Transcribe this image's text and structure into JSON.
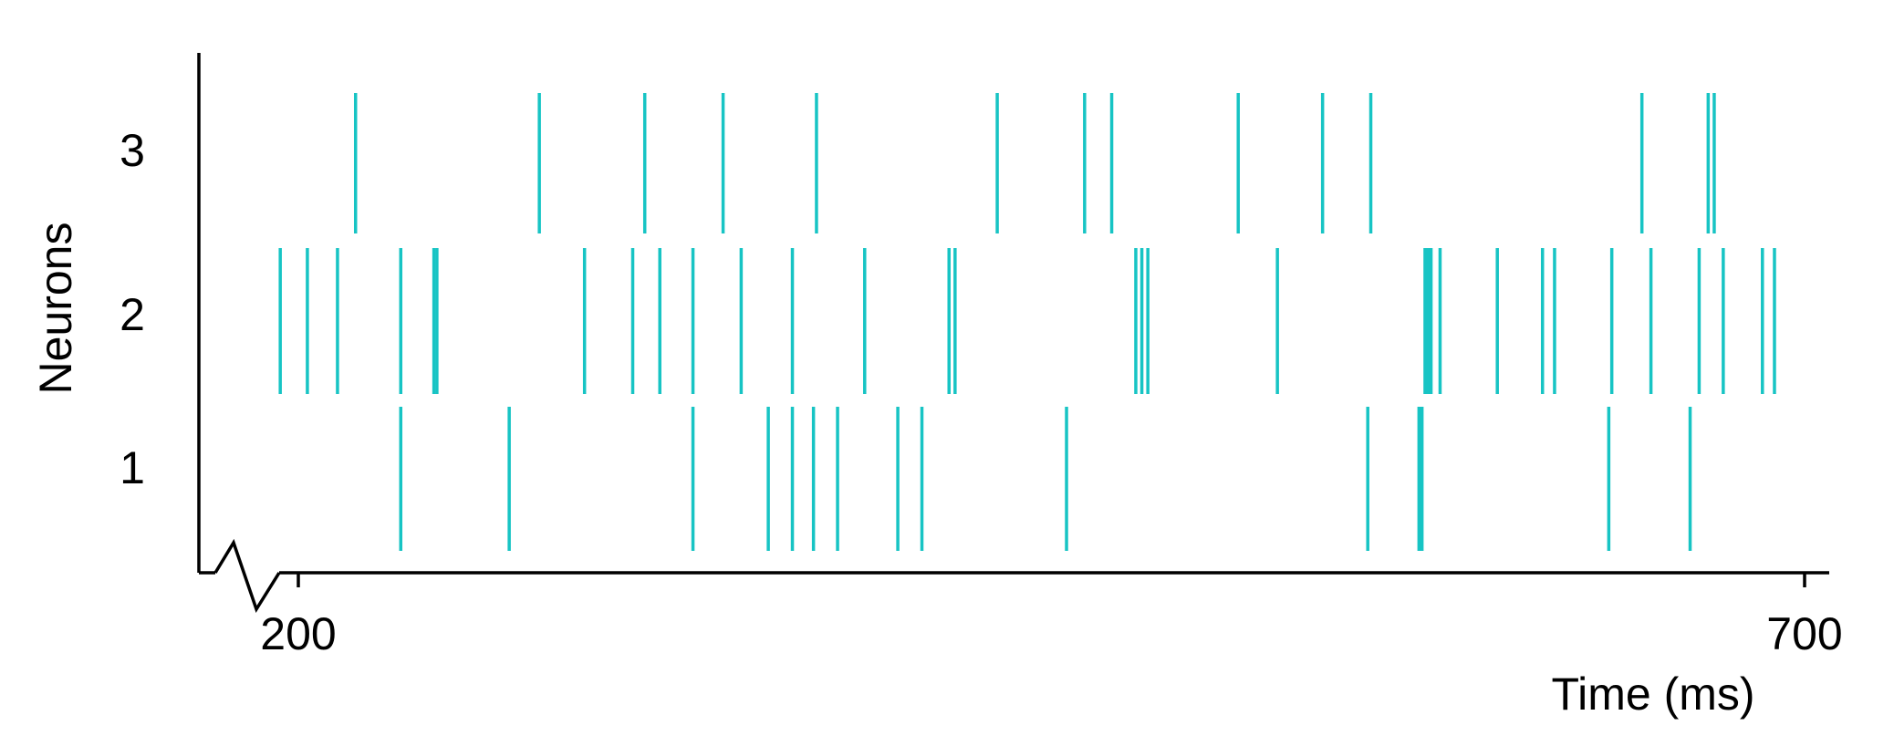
{
  "chart_data": {
    "type": "raster",
    "xlabel": "Time (ms)",
    "ylabel": "Neurons",
    "xlim": [
      167,
      710
    ],
    "x_ticks": [
      200,
      700
    ],
    "x_tick_labels": [
      "200",
      "700"
    ],
    "y_categories": [
      "1",
      "2",
      "3"
    ],
    "axis_break": true,
    "grid": false,
    "spike_color": "#17c4c4",
    "series": [
      {
        "name": "1",
        "spikes": [
          234,
          270,
          331,
          356,
          364,
          371,
          379,
          399,
          407,
          455,
          555,
          572,
          573,
          635,
          662
        ]
      },
      {
        "name": "2",
        "spikes": [
          194,
          203,
          213,
          234,
          245,
          246,
          295,
          311,
          320,
          331,
          347,
          364,
          388,
          416,
          418,
          478,
          480,
          482,
          525,
          574,
          575,
          576,
          579,
          598,
          613,
          617,
          636,
          649,
          665,
          673,
          686,
          690
        ]
      },
      {
        "name": "3",
        "spikes": [
          219,
          280,
          315,
          341,
          372,
          432,
          461,
          470,
          512,
          540,
          556,
          646,
          668,
          670
        ]
      }
    ]
  }
}
